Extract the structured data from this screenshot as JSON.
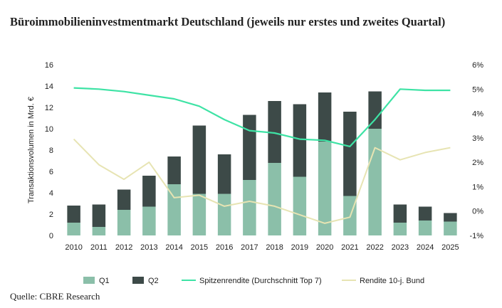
{
  "title": "Büroimmobilieninvestmentmarkt Deutschland (jeweils nur erstes und zweites Quartal)",
  "source": "Quelle: CBRE Research",
  "chart_data": {
    "type": "bar",
    "stacked": true,
    "categories": [
      "2010",
      "2011",
      "2012",
      "2013",
      "2014",
      "2015",
      "2016",
      "2017",
      "2018",
      "2019",
      "2020",
      "2021",
      "2022",
      "2023",
      "2024",
      "2025"
    ],
    "ylabel": "Transaktionsvolumen in Mrd. €",
    "ylim": [
      0,
      16
    ],
    "yticks": [
      "0",
      "2",
      "4",
      "6",
      "8",
      "10",
      "12",
      "14",
      "16"
    ],
    "y2lim": [
      -1,
      6
    ],
    "y2ticks": [
      "-1%",
      "0%",
      "1%",
      "2%",
      "3%",
      "4%",
      "5%",
      "6%"
    ],
    "grid": false,
    "legend_position": "bottom",
    "series": [
      {
        "name": "Q1",
        "type": "bar",
        "axis": "left",
        "color": "#8bbfa9",
        "values": [
          1.2,
          0.8,
          2.4,
          2.7,
          4.8,
          3.9,
          3.9,
          5.2,
          6.8,
          5.5,
          8.8,
          3.7,
          10.0,
          1.2,
          1.4,
          1.3
        ]
      },
      {
        "name": "Q2",
        "type": "bar",
        "axis": "left",
        "color": "#3d4a48",
        "values": [
          1.6,
          2.1,
          1.9,
          2.9,
          2.6,
          6.4,
          3.7,
          6.1,
          5.8,
          6.8,
          4.6,
          7.9,
          3.5,
          1.7,
          1.3,
          0.8
        ]
      },
      {
        "name": "Spitzenrendite (Durchschnitt Top 7)",
        "type": "line",
        "axis": "right",
        "color": "#3ee3a5",
        "values": [
          5.05,
          5.0,
          4.9,
          4.75,
          4.6,
          4.3,
          3.75,
          3.3,
          3.2,
          2.95,
          2.9,
          2.65,
          3.75,
          5.0,
          4.95,
          4.95
        ]
      },
      {
        "name": "Rendite 10-j. Bund",
        "type": "line",
        "axis": "right",
        "color": "#e7e4b3",
        "values": [
          2.95,
          1.9,
          1.3,
          2.0,
          0.55,
          0.65,
          0.2,
          0.4,
          0.2,
          -0.15,
          -0.5,
          -0.25,
          2.6,
          2.1,
          2.4,
          2.6
        ]
      }
    ]
  }
}
